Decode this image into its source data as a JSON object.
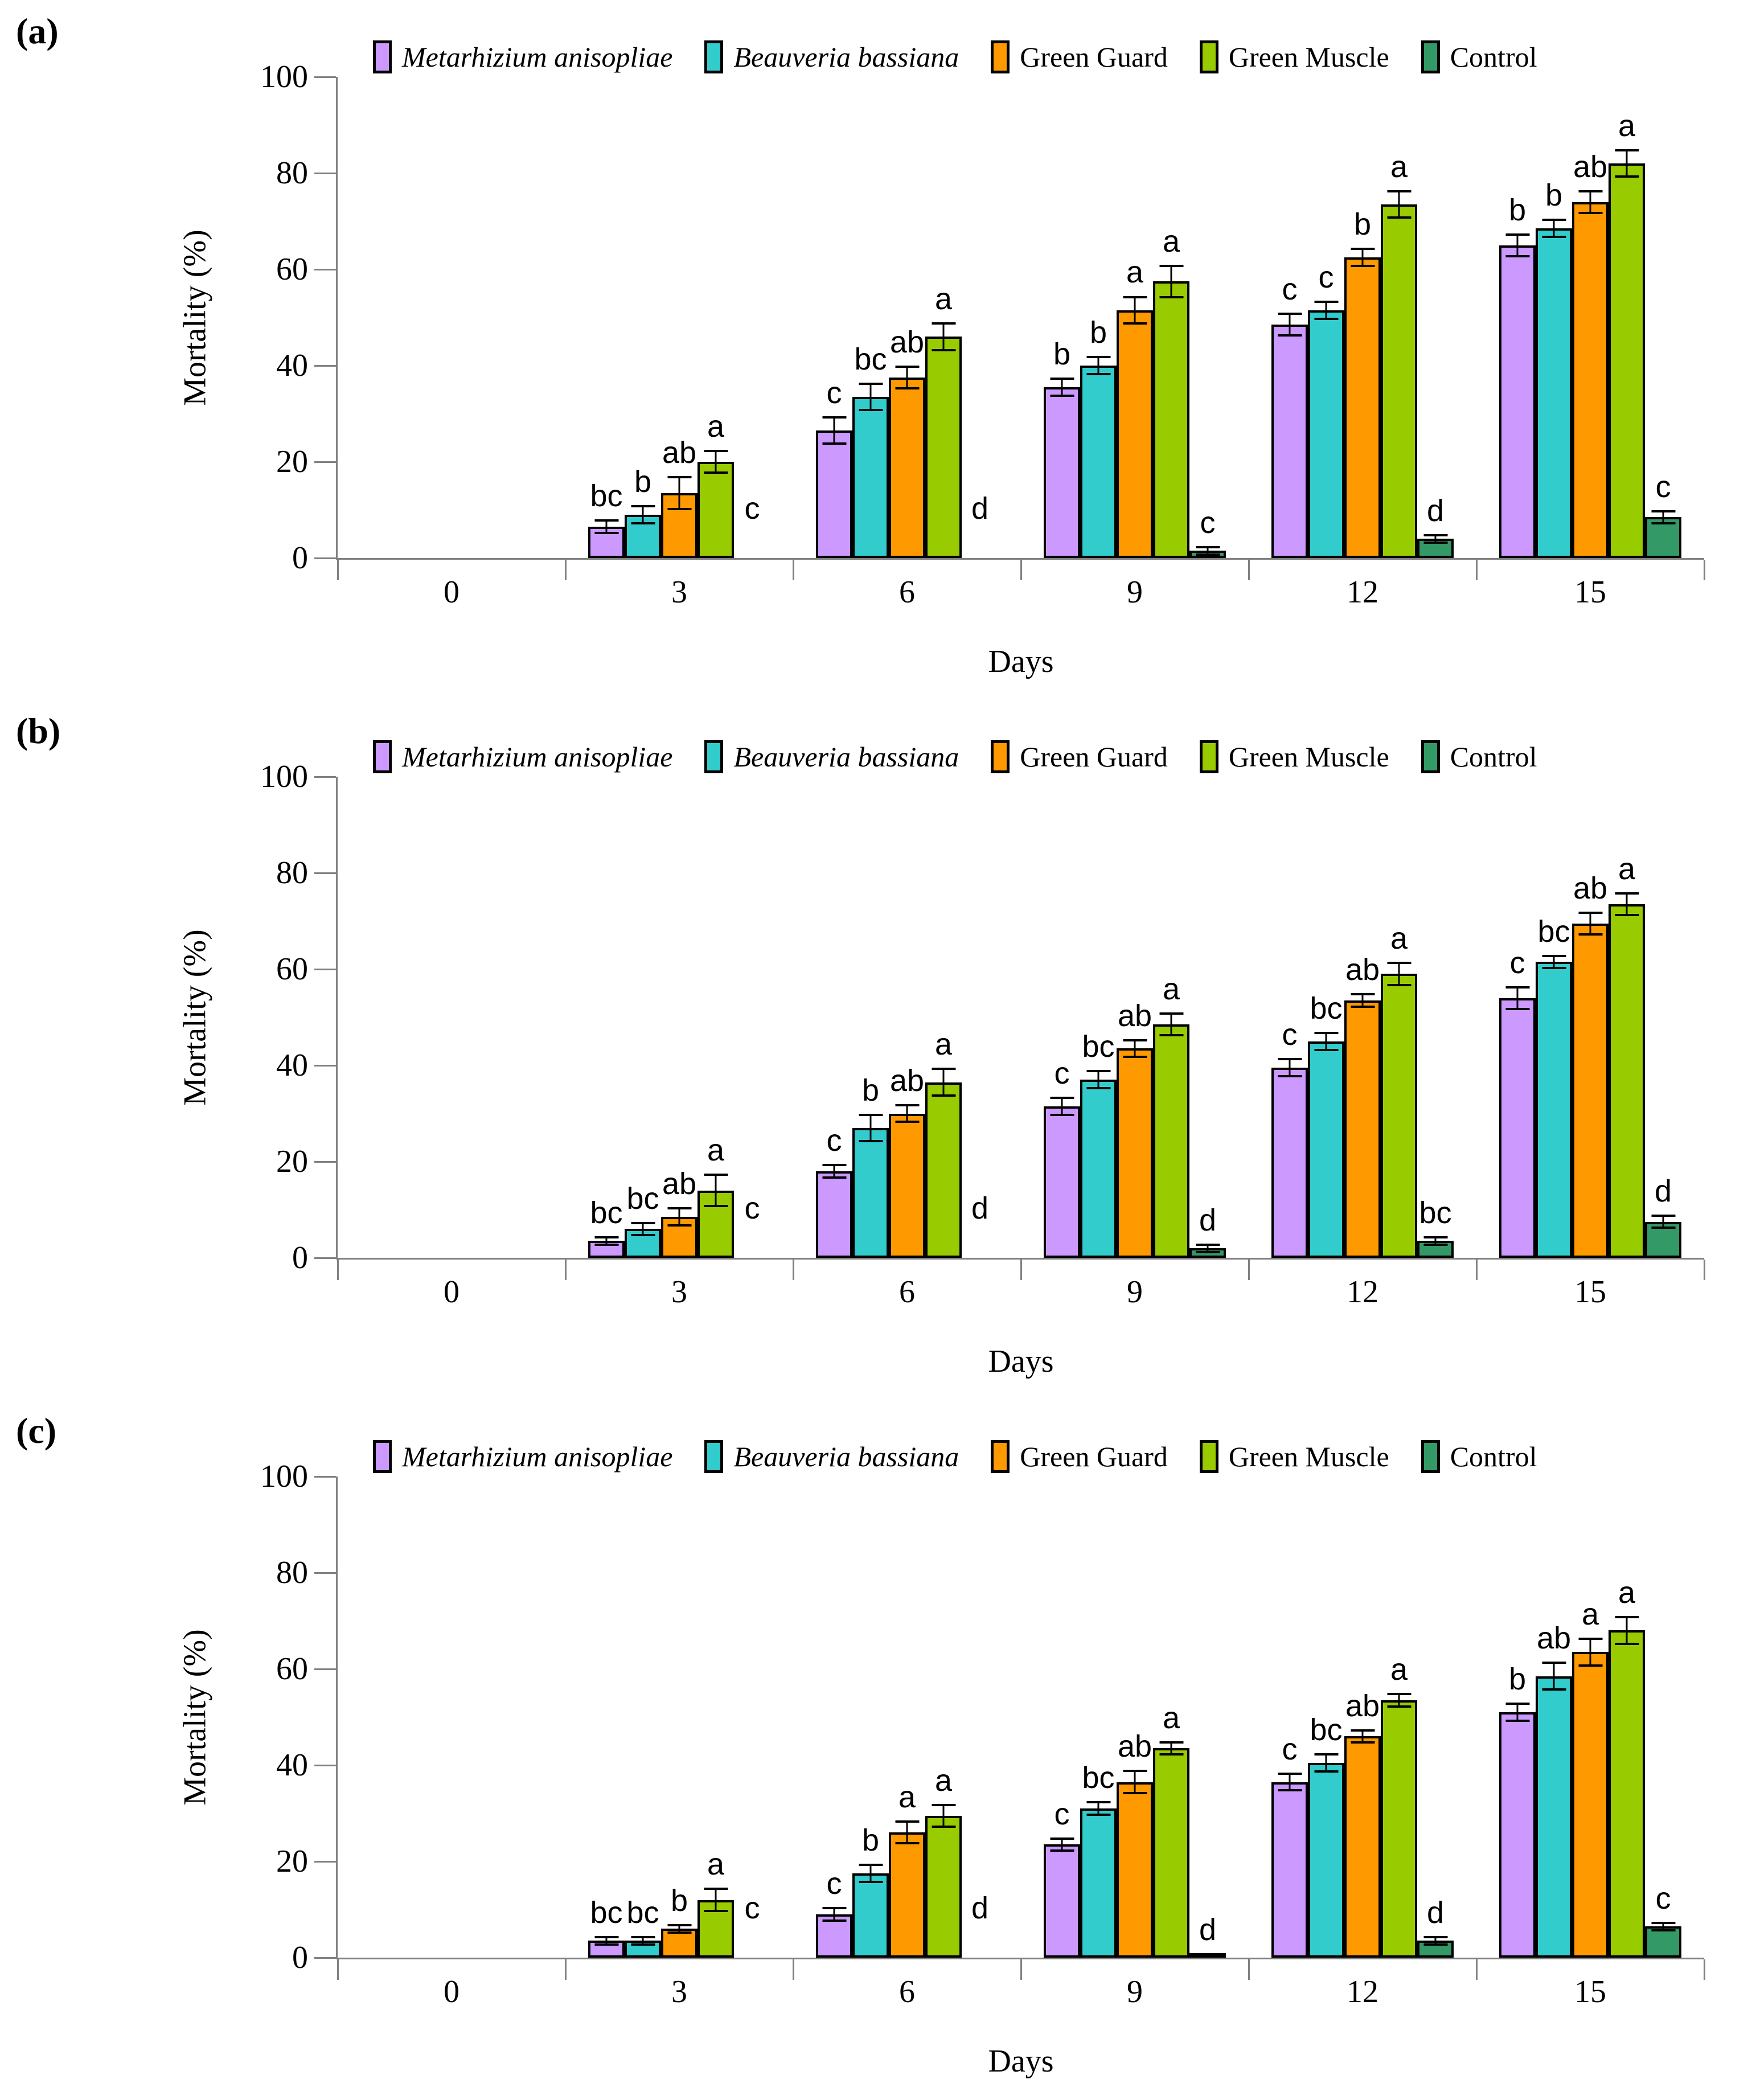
{
  "figure": {
    "panel_labels": [
      "(a)",
      "(b)",
      "(c)"
    ]
  },
  "chart_data": [
    {
      "type": "bar",
      "panel": "(a)",
      "xlabel": "Days",
      "ylabel": "Mortality (%)",
      "ylim": [
        0,
        100
      ],
      "yticks": [
        0,
        20,
        40,
        60,
        80,
        100
      ],
      "grid": false,
      "legend_position": "top",
      "categories": [
        "0",
        "3",
        "6",
        "9",
        "12",
        "15"
      ],
      "series": [
        {
          "name": "Metarhizium anisopliae",
          "italic": true,
          "color": "#CC99FF",
          "values": [
            0,
            6.5,
            26.5,
            35.5,
            48.5,
            65
          ],
          "errors": [
            0,
            1.5,
            3,
            2,
            2.5,
            2.5
          ],
          "letters": [
            "",
            "bc",
            "c",
            "b",
            "c",
            "b"
          ]
        },
        {
          "name": "Beauveria bassiana",
          "italic": true,
          "color": "#33CCCC",
          "values": [
            0,
            9,
            33.5,
            40,
            51.5,
            68.5
          ],
          "errors": [
            0,
            2,
            3,
            2,
            2,
            2
          ],
          "letters": [
            "",
            "b",
            "bc",
            "b",
            "c",
            "b"
          ]
        },
        {
          "name": "Green Guard",
          "italic": false,
          "color": "#FF9900",
          "values": [
            0,
            13.5,
            37.5,
            51.5,
            62.5,
            74
          ],
          "errors": [
            0,
            3.5,
            2.5,
            3,
            2,
            2.5
          ],
          "letters": [
            "",
            "ab",
            "ab",
            "a",
            "b",
            "ab"
          ]
        },
        {
          "name": "Green Muscle",
          "italic": false,
          "color": "#99CC00",
          "values": [
            0,
            20,
            46,
            57.5,
            73.5,
            82
          ],
          "errors": [
            0,
            2.5,
            3,
            3.5,
            3,
            3
          ],
          "letters": [
            "",
            "a",
            "a",
            "a",
            "a",
            "a"
          ]
        },
        {
          "name": "Control",
          "italic": false,
          "color": "#339966",
          "values": [
            0,
            0,
            0,
            1.5,
            4,
            8.5
          ],
          "errors": [
            0,
            0,
            0,
            1,
            1,
            1.5
          ],
          "letters": [
            "",
            "c",
            "d",
            "c",
            "d",
            "c"
          ]
        }
      ]
    },
    {
      "type": "bar",
      "panel": "(b)",
      "xlabel": "Days",
      "ylabel": "Mortality (%)",
      "ylim": [
        0,
        100
      ],
      "yticks": [
        0,
        20,
        40,
        60,
        80,
        100
      ],
      "grid": false,
      "legend_position": "top",
      "categories": [
        "0",
        "3",
        "6",
        "9",
        "12",
        "15"
      ],
      "series": [
        {
          "name": "Metarhizium anisopliae",
          "italic": true,
          "color": "#CC99FF",
          "values": [
            0,
            3.5,
            18,
            31.5,
            39.5,
            54
          ],
          "errors": [
            0,
            1,
            1.5,
            2,
            2,
            2.5
          ],
          "letters": [
            "",
            "bc",
            "c",
            "c",
            "c",
            "c"
          ]
        },
        {
          "name": "Beauveria bassiana",
          "italic": true,
          "color": "#33CCCC",
          "values": [
            0,
            6,
            27,
            37,
            45,
            61.5
          ],
          "errors": [
            0,
            1.5,
            3,
            2,
            2,
            1.5
          ],
          "letters": [
            "",
            "bc",
            "b",
            "bc",
            "bc",
            "bc"
          ]
        },
        {
          "name": "Green Guard",
          "italic": false,
          "color": "#FF9900",
          "values": [
            0,
            8.5,
            30,
            43.5,
            53.5,
            69.5
          ],
          "errors": [
            0,
            2,
            2,
            2,
            1.5,
            2.5
          ],
          "letters": [
            "",
            "ab",
            "ab",
            "ab",
            "ab",
            "ab"
          ]
        },
        {
          "name": "Green Muscle",
          "italic": false,
          "color": "#99CC00",
          "values": [
            0,
            14,
            36.5,
            48.5,
            59,
            73.5
          ],
          "errors": [
            0,
            3.5,
            3,
            2.5,
            2.5,
            2.5
          ],
          "letters": [
            "",
            "a",
            "a",
            "a",
            "a",
            "a"
          ]
        },
        {
          "name": "Control",
          "italic": false,
          "color": "#339966",
          "values": [
            0,
            0,
            0,
            2,
            3.5,
            7.5
          ],
          "errors": [
            0,
            0,
            0,
            1,
            1,
            1.5
          ],
          "letters": [
            "",
            "c",
            "d",
            "d",
            "bc",
            "d"
          ]
        }
      ]
    },
    {
      "type": "bar",
      "panel": "(c)",
      "xlabel": "Days",
      "ylabel": "Mortality (%)",
      "ylim": [
        0,
        100
      ],
      "yticks": [
        0,
        20,
        40,
        60,
        80,
        100
      ],
      "grid": false,
      "legend_position": "top",
      "categories": [
        "0",
        "3",
        "6",
        "9",
        "12",
        "15"
      ],
      "series": [
        {
          "name": "Metarhizium anisopliae",
          "italic": true,
          "color": "#CC99FF",
          "values": [
            0,
            3.5,
            9,
            23.5,
            36.5,
            51
          ],
          "errors": [
            0,
            1,
            1.5,
            1.5,
            2,
            2
          ],
          "letters": [
            "",
            "bc",
            "c",
            "c",
            "c",
            "b"
          ]
        },
        {
          "name": "Beauveria bassiana",
          "italic": true,
          "color": "#33CCCC",
          "values": [
            0,
            3.5,
            17.5,
            31,
            40.5,
            58.5
          ],
          "errors": [
            0,
            1,
            2,
            1.5,
            2,
            3
          ],
          "letters": [
            "",
            "bc",
            "b",
            "bc",
            "bc",
            "ab"
          ]
        },
        {
          "name": "Green Guard",
          "italic": false,
          "color": "#FF9900",
          "values": [
            0,
            6,
            26,
            36.5,
            46,
            63.5
          ],
          "errors": [
            0,
            1,
            2.5,
            2.5,
            1.5,
            3
          ],
          "letters": [
            "",
            "b",
            "a",
            "ab",
            "ab",
            "a"
          ]
        },
        {
          "name": "Green Muscle",
          "italic": false,
          "color": "#99CC00",
          "values": [
            0,
            12,
            29.5,
            43.5,
            53.5,
            68
          ],
          "errors": [
            0,
            2.5,
            2.5,
            1.5,
            1.5,
            3
          ],
          "letters": [
            "",
            "a",
            "a",
            "a",
            "a",
            "a"
          ]
        },
        {
          "name": "Control",
          "italic": false,
          "color": "#339966",
          "values": [
            0,
            0,
            0,
            0.5,
            3.5,
            6.5
          ],
          "errors": [
            0,
            0,
            0,
            0.5,
            1,
            1
          ],
          "letters": [
            "",
            "c",
            "d",
            "d",
            "d",
            "c"
          ]
        }
      ]
    }
  ]
}
